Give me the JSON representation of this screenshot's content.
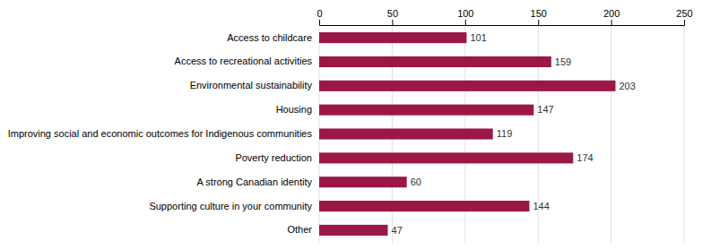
{
  "chart_data": {
    "type": "bar",
    "orientation": "horizontal",
    "categories": [
      "Other",
      "Supporting culture in your community",
      "A strong Canadian identity",
      "Poverty reduction",
      "Improving social and economic outcomes for Indigenous communities",
      "Housing",
      "Environmental sustainability",
      "Access to recreational activities",
      "Access to childcare"
    ],
    "values": [
      47,
      144,
      60,
      174,
      119,
      147,
      203,
      159,
      101
    ],
    "color": "#9b1748",
    "xlim": [
      0,
      250
    ],
    "xticks": [
      0,
      50,
      100,
      150,
      200,
      250
    ],
    "grid": true,
    "data_labels": true
  }
}
